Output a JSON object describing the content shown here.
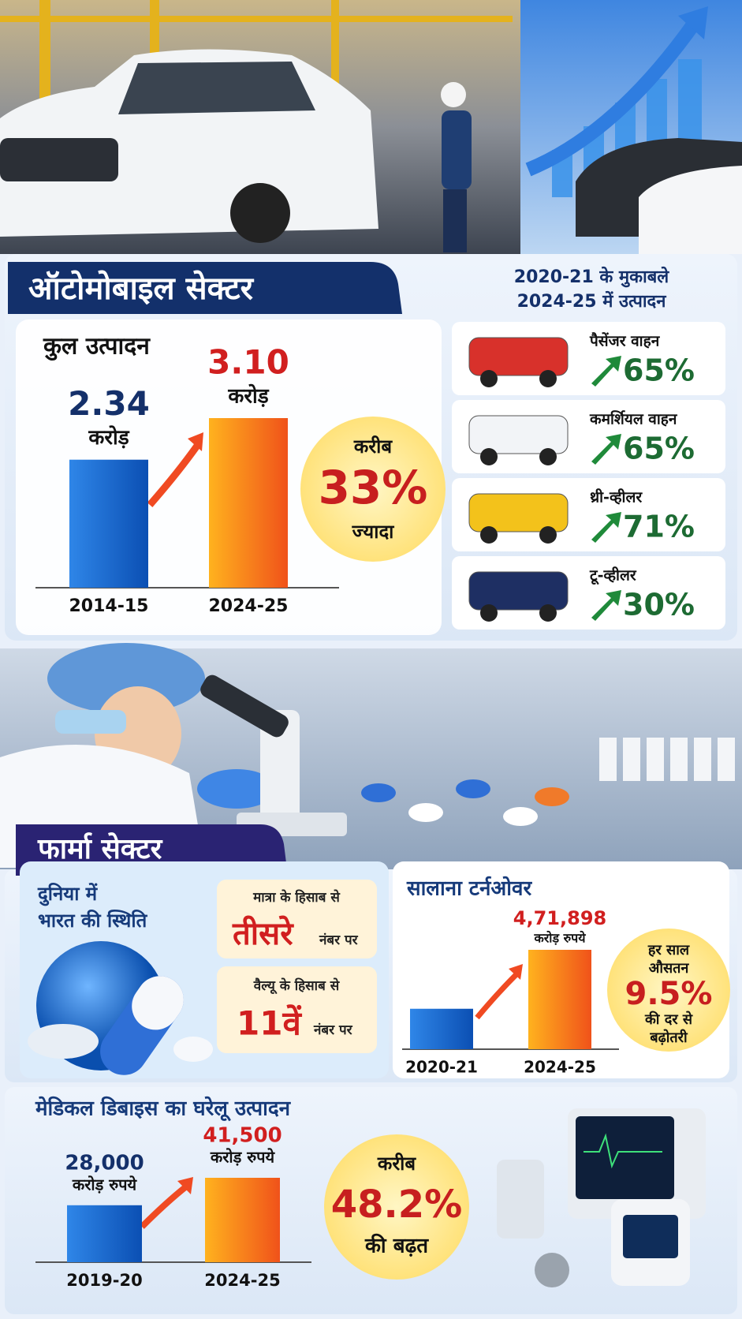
{
  "auto": {
    "title": "ऑटोमोबाइल सेक्टर",
    "total": {
      "title": "कुल उत्पादन",
      "bars": [
        {
          "period": "2014-15",
          "value": 2.34,
          "value_label": "2.34",
          "unit": "करोड़"
        },
        {
          "period": "2024-25",
          "value": 3.1,
          "value_label": "3.10",
          "unit": "करोड़"
        }
      ]
    },
    "growth": {
      "prefix": "करीब",
      "value": "33%",
      "suffix": "ज्यादा"
    },
    "comparison": {
      "heading": [
        "2020-21 के मुकाबले",
        "2024-25 में उत्पादन"
      ],
      "items": [
        {
          "label": "पैसेंजर वाहन",
          "value": "65%"
        },
        {
          "label": "कमर्शियल वाहन",
          "value": "65%"
        },
        {
          "label": "थ्री-व्हीलर",
          "value": "71%"
        },
        {
          "label": "टू-व्हीलर",
          "value": "30%"
        }
      ]
    }
  },
  "pharma": {
    "title": "फार्मा सेक्टर",
    "position": {
      "heading": [
        "दुनिया में",
        "भारत की स्थिति"
      ],
      "ranks": [
        {
          "basis": "मात्रा के हिसाब से",
          "rank": "तीसरे",
          "suffix": "नंबर पर"
        },
        {
          "basis": "वैल्यू के हिसाब से",
          "rank": "11वें",
          "suffix": "नंबर पर"
        }
      ]
    },
    "turnover": {
      "title": "सालाना टर्नओवर",
      "bars": [
        {
          "period": "2020-21",
          "value": 192000
        },
        {
          "period": "2024-25",
          "value": 471898,
          "value_label": "4,71,898",
          "unit": "करोड़ रुपये"
        }
      ],
      "growth": [
        "हर साल",
        "औसतन",
        "9.5%",
        "की दर से",
        "बढ़ोतरी"
      ]
    }
  },
  "medical": {
    "title": "मेडिकल डिबाइस का घरेलू उत्पादन",
    "bars": [
      {
        "period": "2019-20",
        "value": 28000,
        "value_label": "28,000",
        "unit": "करोड़ रुपये"
      },
      {
        "period": "2024-25",
        "value": 41500,
        "value_label": "41,500",
        "unit": "करोड़ रुपये"
      }
    ],
    "growth": {
      "prefix": "करीब",
      "value": "48.2%",
      "suffix": "की बढ़त"
    }
  }
}
